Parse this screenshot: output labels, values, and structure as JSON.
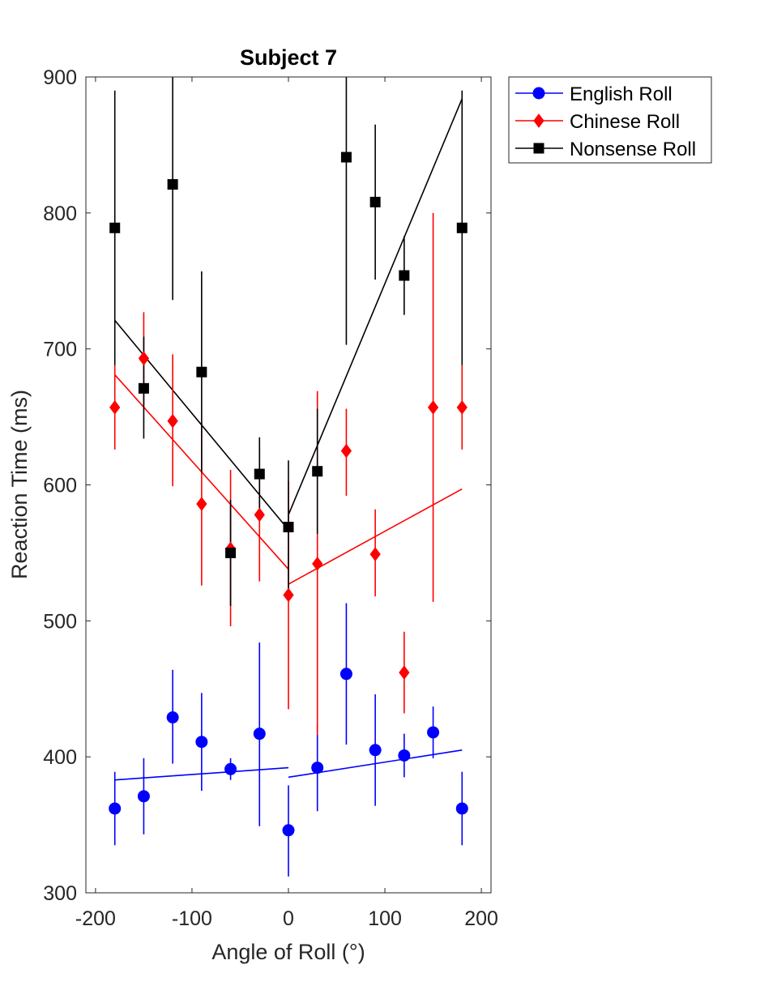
{
  "chart_data": {
    "type": "scatter",
    "title": "Subject 7",
    "xlabel": "Angle of Roll (°)",
    "ylabel": "Reaction Time (ms)",
    "xlim": [
      -210,
      210
    ],
    "ylim": [
      300,
      900
    ],
    "xticks": [
      -200,
      -100,
      0,
      100,
      200
    ],
    "xtick_labels": [
      "-200",
      "-100",
      "0",
      "100",
      "200"
    ],
    "yticks": [
      300,
      400,
      500,
      600,
      700,
      800,
      900
    ],
    "ytick_labels": [
      "300",
      "400",
      "500",
      "600",
      "700",
      "800",
      "900"
    ],
    "grid": false,
    "legend_position": "outside-top-right",
    "series": [
      {
        "name": "English Roll",
        "color": "#0000ff",
        "marker": "circle",
        "x": [
          -180,
          -150,
          -120,
          -90,
          -60,
          -30,
          0,
          30,
          60,
          90,
          120,
          150,
          180
        ],
        "y": [
          362,
          371,
          429,
          411,
          391,
          417,
          346,
          392,
          461,
          405,
          401,
          418,
          362
        ],
        "err_low": [
          335,
          343,
          395,
          375,
          383,
          349,
          312,
          360,
          409,
          364,
          385,
          399,
          335
        ],
        "err_high": [
          389,
          399,
          464,
          447,
          399,
          484,
          379,
          424,
          513,
          446,
          417,
          437,
          389
        ],
        "fit_left": [
          [
            -180,
            383
          ],
          [
            0,
            392
          ]
        ],
        "fit_right": [
          [
            0,
            385
          ],
          [
            180,
            405
          ]
        ]
      },
      {
        "name": "Chinese Roll",
        "color": "#ff0000",
        "marker": "diamond",
        "x": [
          -180,
          -150,
          -120,
          -90,
          -60,
          -30,
          0,
          30,
          60,
          90,
          120,
          150,
          180
        ],
        "y": [
          657,
          693,
          647,
          586,
          553,
          578,
          519,
          542,
          625,
          549,
          462,
          657,
          657
        ],
        "err_low": [
          626,
          659,
          599,
          526,
          496,
          529,
          435,
          416,
          592,
          518,
          432,
          514,
          626
        ],
        "err_high": [
          688,
          727,
          696,
          646,
          611,
          627,
          603,
          669,
          656,
          582,
          492,
          800,
          688
        ],
        "fit_left": [
          [
            -180,
            681
          ],
          [
            0,
            538
          ]
        ],
        "fit_right": [
          [
            0,
            527
          ],
          [
            180,
            597
          ]
        ]
      },
      {
        "name": "Nonsense Roll",
        "color": "#000000",
        "marker": "square",
        "x": [
          -180,
          -150,
          -120,
          -90,
          -60,
          -30,
          0,
          30,
          60,
          90,
          120,
          150,
          180
        ],
        "y": [
          789,
          671,
          821,
          683,
          550,
          608,
          569,
          610,
          841,
          808,
          754,
          null,
          789
        ],
        "err_low": [
          688,
          634,
          736,
          609,
          511,
          582,
          520,
          564,
          703,
          751,
          725,
          null,
          688
        ],
        "err_high": [
          890,
          709,
          906,
          757,
          589,
          635,
          618,
          656,
          979,
          865,
          783,
          null,
          890
        ],
        "fit_left": [
          [
            -180,
            721
          ],
          [
            0,
            567
          ]
        ],
        "fit_right": [
          [
            0,
            578
          ],
          [
            180,
            884
          ]
        ]
      }
    ]
  }
}
